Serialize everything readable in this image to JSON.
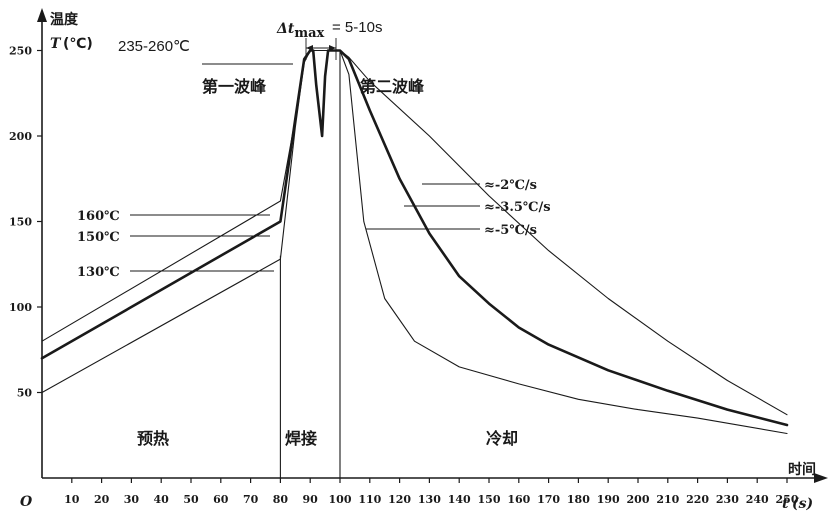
{
  "chart_data": {
    "type": "line",
    "ylabel_cn": "温度",
    "ylabel_sym": "T",
    "ylabel_unit": "(℃)",
    "xlabel_cn": "时间",
    "xlabel_sym": "t",
    "xlabel_unit": "(s)",
    "origin_label": "O",
    "xlim": [
      0,
      255
    ],
    "ylim": [
      0,
      265
    ],
    "x_ticks": [
      10,
      20,
      30,
      40,
      50,
      60,
      70,
      80,
      90,
      100,
      110,
      120,
      130,
      140,
      150,
      160,
      170,
      180,
      190,
      200,
      210,
      220,
      230,
      240,
      250
    ],
    "y_ticks": [
      50,
      100,
      150,
      200,
      250
    ],
    "grid": false,
    "series": [
      {
        "label": "≈-2℃/s",
        "x": [
          0,
          80,
          85,
          88,
          90,
          100,
          103,
          110,
          130,
          150,
          170,
          190,
          210,
          230,
          250
        ],
        "y": [
          80,
          162,
          210,
          245,
          250,
          250,
          246,
          232,
          200,
          165,
          133,
          105,
          80,
          57,
          37
        ]
      },
      {
        "label": "≈-3.5℃/s",
        "x": [
          0,
          80,
          85,
          88,
          90,
          91,
          92,
          94,
          95,
          96,
          98,
          100,
          103,
          110,
          120,
          130,
          140,
          150,
          160,
          170,
          190,
          210,
          230,
          250
        ],
        "y": [
          70,
          150,
          210,
          245,
          250,
          250,
          230,
          200,
          235,
          250,
          250,
          250,
          245,
          215,
          175,
          143,
          118,
          102,
          88,
          78,
          63,
          51,
          40,
          31
        ]
      },
      {
        "label": "≈-5℃/s",
        "x": [
          0,
          80,
          85,
          88,
          90,
          100,
          103,
          108,
          115,
          125,
          140,
          160,
          180,
          200,
          220,
          250
        ],
        "y": [
          50,
          128,
          205,
          243,
          250,
          250,
          236,
          150,
          105,
          80,
          65,
          55,
          46,
          40,
          35,
          26
        ]
      }
    ],
    "slope_labels": [
      "≈-2℃/s",
      "≈-3.5℃/s",
      "≈-5℃/s"
    ],
    "temp_labels": [
      "160℃",
      "150℃",
      "130℃"
    ],
    "temp_values": [
      160,
      150,
      130
    ],
    "peak_range_label": "235-260℃",
    "delta_t_label": "Δt",
    "delta_t_sub": "max",
    "delta_t_value": "= 5-10s",
    "first_wave_label": "第一波峰",
    "second_wave_label": "第二波峰",
    "phase_labels": [
      "预热",
      "焊接",
      "冷却"
    ],
    "phase_boundaries": [
      80,
      100
    ]
  }
}
